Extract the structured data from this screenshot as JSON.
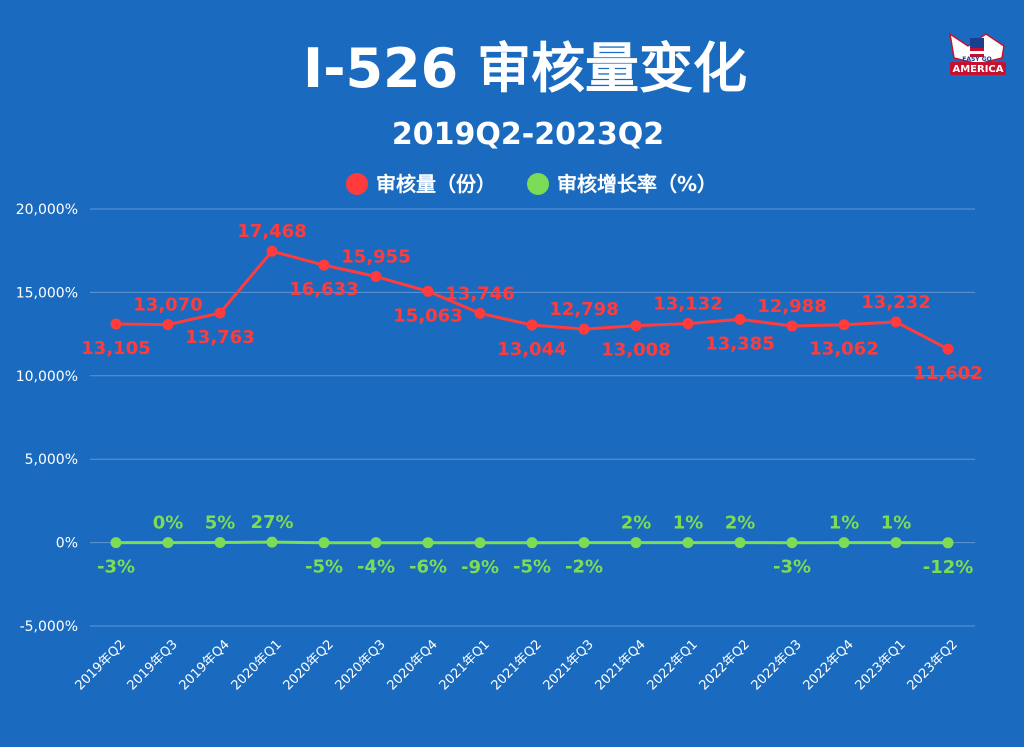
{
  "colors": {
    "background": "#1a6bbf",
    "series_red": "#ff3b3b",
    "series_green": "#7ddc55",
    "grid": "#5d95d2",
    "text": "#ffffff"
  },
  "logo": {
    "top_text": "EASY GO",
    "bottom_text": "AMERICA",
    "icon": "eagle-flag-icon"
  },
  "chart_data": {
    "type": "line",
    "title": "I-526 审核量变化",
    "subtitle": "2019Q2-2023Q2",
    "categories": [
      "2019年Q2",
      "2019年Q3",
      "2019年Q4",
      "2020年Q1",
      "2020年Q2",
      "2020年Q3",
      "2020年Q4",
      "2021年Q1",
      "2021年Q2",
      "2021年Q3",
      "2021年Q4",
      "2022年Q1",
      "2022年Q2",
      "2022年Q3",
      "2022年Q4",
      "2023年Q1",
      "2023年Q2"
    ],
    "ylim": [
      -5000,
      20000
    ],
    "yticks": [
      {
        "value": 20000,
        "label": "20,000%"
      },
      {
        "value": 15000,
        "label": "15,000%"
      },
      {
        "value": 10000,
        "label": "10,000%"
      },
      {
        "value": 5000,
        "label": "5,000%"
      },
      {
        "value": 0,
        "label": "0%"
      },
      {
        "value": -5000,
        "label": "-5,000%"
      }
    ],
    "grid": true,
    "legend_position": "top-center",
    "series": [
      {
        "name": "审核量（份）",
        "color": "#ff3b3b",
        "values": [
          13105,
          13070,
          13763,
          17468,
          16633,
          15955,
          15063,
          13746,
          13044,
          12798,
          13008,
          13132,
          13385,
          12988,
          13062,
          13232,
          11602
        ],
        "labels": [
          "13,105",
          "13,070",
          "13,763",
          "17,468",
          "16,633",
          "15,955",
          "15,063",
          "13,746",
          "13,044",
          "12,798",
          "13,008",
          "13,132",
          "13,385",
          "12,988",
          "13,062",
          "13,232",
          "11,602"
        ],
        "label_positions": [
          "below",
          "above",
          "below",
          "above",
          "below",
          "above",
          "below",
          "above",
          "below",
          "above",
          "below",
          "above",
          "below",
          "above",
          "below",
          "above",
          "below"
        ]
      },
      {
        "name": "审核增长率（%）",
        "color": "#7ddc55",
        "values": [
          -3,
          0,
          5,
          27,
          -5,
          -4,
          -6,
          -9,
          -5,
          -2,
          2,
          1,
          2,
          -3,
          1,
          1,
          -12
        ],
        "labels": [
          "-3%",
          "0%",
          "5%",
          "27%",
          "-5%",
          "-4%",
          "-6%",
          "-9%",
          "-5%",
          "-2%",
          "2%",
          "1%",
          "2%",
          "-3%",
          "1%",
          "1%",
          "-12%"
        ],
        "label_positions": [
          "below",
          "above",
          "above",
          "above",
          "below",
          "below",
          "below",
          "below",
          "below",
          "below",
          "above",
          "above",
          "above",
          "below",
          "above",
          "above",
          "below"
        ]
      }
    ]
  }
}
